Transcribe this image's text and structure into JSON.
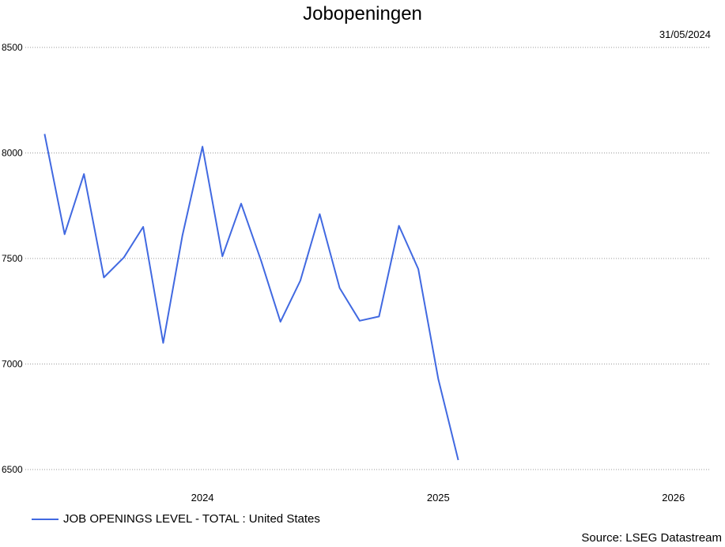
{
  "chart_data": {
    "type": "line",
    "title": "Jobopeningen",
    "date_label": "31/05/2024",
    "ylim": [
      6500,
      8500
    ],
    "yticks": [
      6500,
      7000,
      7500,
      8000,
      8500
    ],
    "xlim": [
      "2023-04-01",
      "2026-02-28"
    ],
    "xticks": [
      {
        "label": "2024",
        "date": "2024-01-01"
      },
      {
        "label": "2025",
        "date": "2025-01-01"
      },
      {
        "label": "2026",
        "date": "2026-01-01"
      }
    ],
    "grid": true,
    "legend_position": "bottom-left",
    "series": [
      {
        "name": "JOB OPENINGS LEVEL - TOTAL : United States",
        "color": "#4169e1",
        "points": [
          {
            "x": "2023-05-01",
            "y": 8090
          },
          {
            "x": "2023-06-01",
            "y": 7615
          },
          {
            "x": "2023-07-01",
            "y": 7900
          },
          {
            "x": "2023-08-01",
            "y": 7410
          },
          {
            "x": "2023-09-01",
            "y": 7505
          },
          {
            "x": "2023-10-01",
            "y": 7650
          },
          {
            "x": "2023-11-01",
            "y": 7100
          },
          {
            "x": "2023-12-01",
            "y": 7610
          },
          {
            "x": "2024-01-01",
            "y": 8030
          },
          {
            "x": "2024-02-01",
            "y": 7510
          },
          {
            "x": "2024-03-01",
            "y": 7760
          },
          {
            "x": "2024-04-01",
            "y": 7490
          },
          {
            "x": "2024-05-01",
            "y": 7200
          },
          {
            "x": "2024-06-01",
            "y": 7395
          },
          {
            "x": "2024-07-01",
            "y": 7710
          },
          {
            "x": "2024-08-01",
            "y": 7360
          },
          {
            "x": "2024-09-01",
            "y": 7205
          },
          {
            "x": "2024-10-01",
            "y": 7225
          },
          {
            "x": "2024-11-01",
            "y": 7655
          },
          {
            "x": "2024-12-01",
            "y": 7450
          },
          {
            "x": "2025-01-01",
            "y": 6930
          },
          {
            "x": "2025-02-01",
            "y": 6545
          }
        ]
      }
    ],
    "source": "Source: LSEG Datastream"
  }
}
